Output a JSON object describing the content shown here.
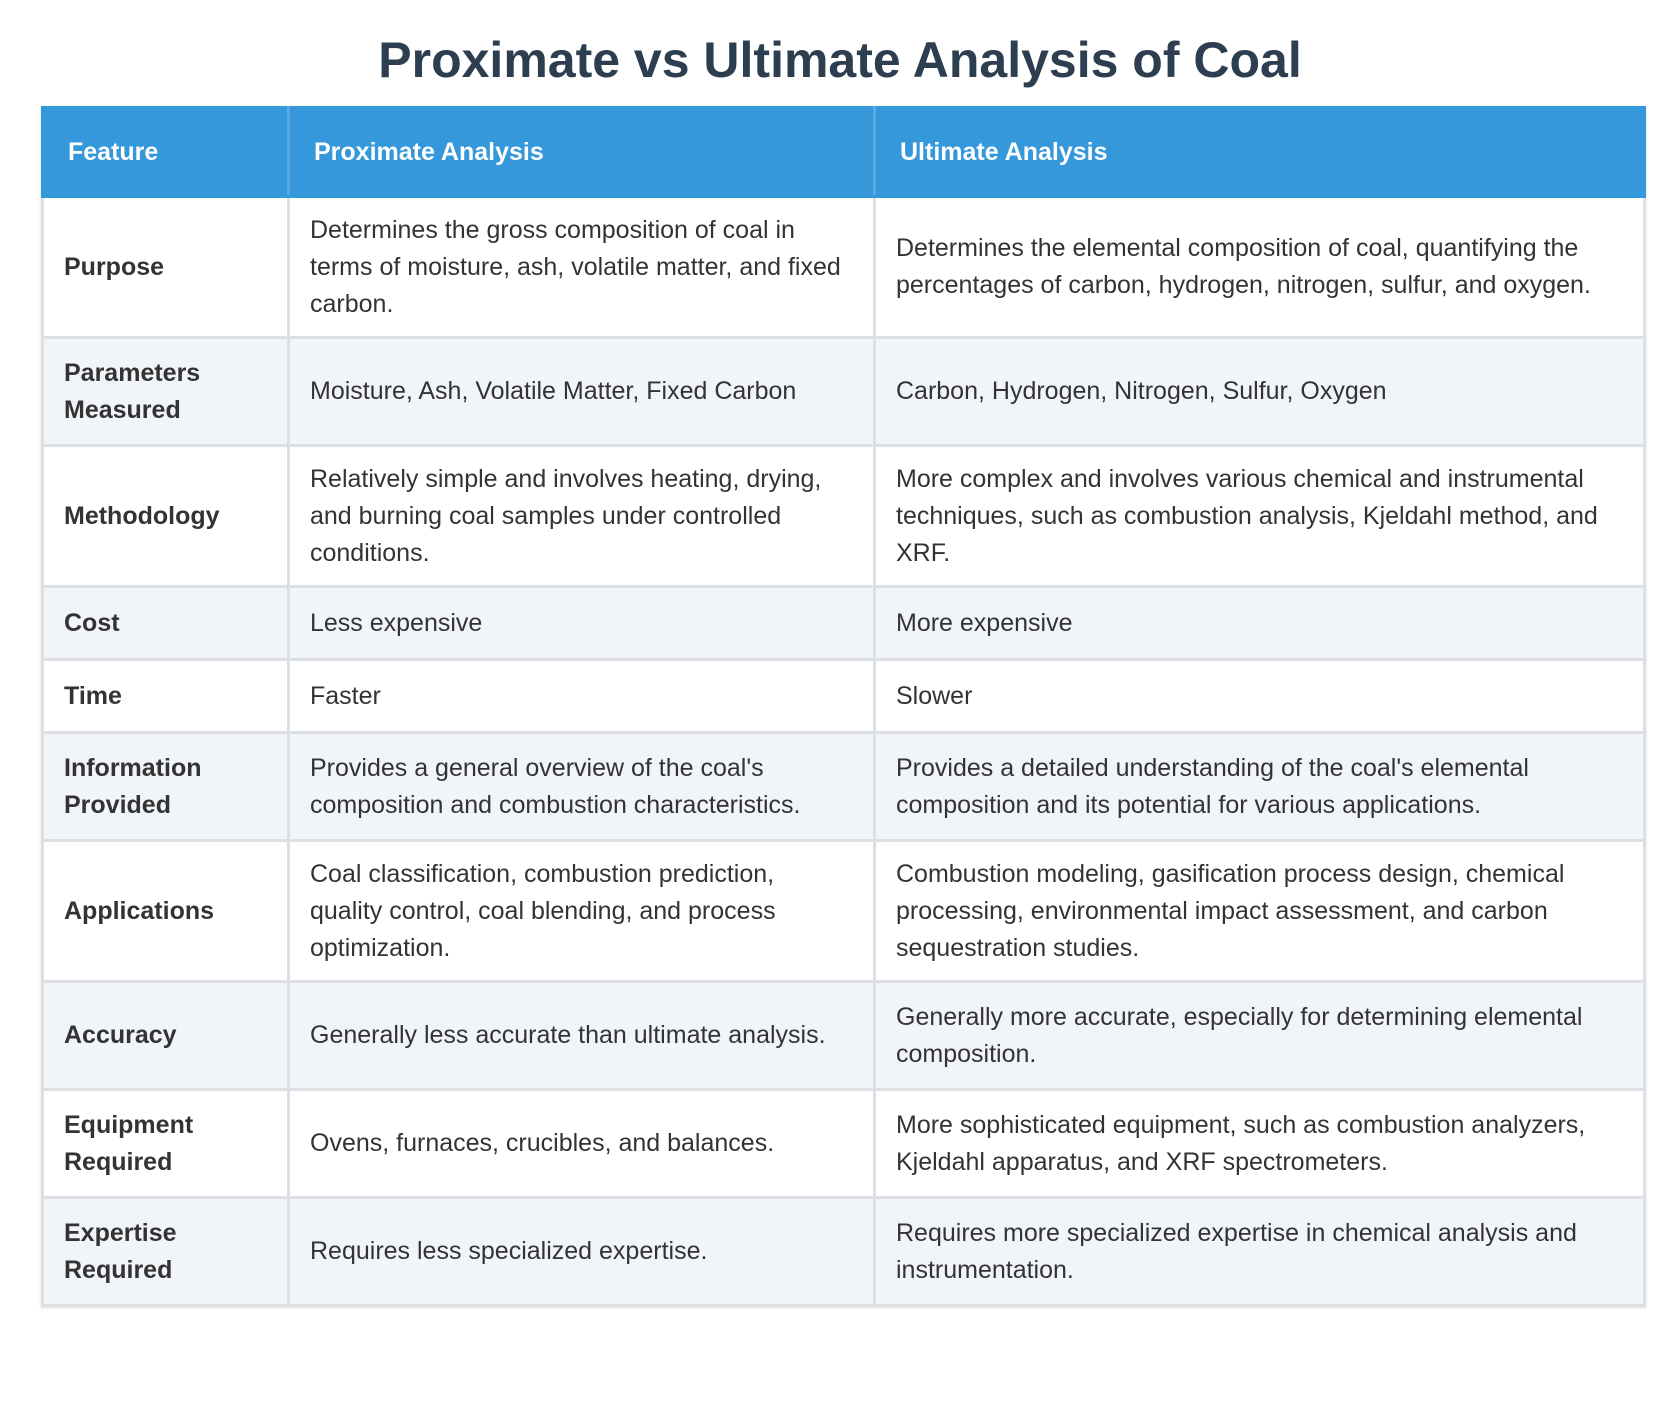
{
  "title": "Proximate vs Ultimate Analysis of Coal",
  "colors": {
    "header_bg": "#3498db",
    "title": "#2c3e50",
    "row_alt": "#f1f4f8"
  },
  "table": {
    "headers": [
      "Feature",
      "Proximate Analysis",
      "Ultimate Analysis"
    ],
    "rows": [
      {
        "feature": "Purpose",
        "proximate": "Determines the gross composition of coal in terms of moisture, ash, volatile matter, and fixed carbon.",
        "ultimate": "Determines the elemental composition of coal, quantifying the percentages of carbon, hydrogen, nitrogen, sulfur, and oxygen."
      },
      {
        "feature": "Parameters Measured",
        "proximate": "Moisture, Ash, Volatile Matter, Fixed Carbon",
        "ultimate": "Carbon, Hydrogen, Nitrogen, Sulfur, Oxygen"
      },
      {
        "feature": "Methodology",
        "proximate": "Relatively simple and involves heating, drying, and burning coal samples under controlled conditions.",
        "ultimate": "More complex and involves various chemical and instrumental techniques, such as combustion analysis, Kjeldahl method, and XRF."
      },
      {
        "feature": "Cost",
        "proximate": "Less expensive",
        "ultimate": "More expensive"
      },
      {
        "feature": "Time",
        "proximate": "Faster",
        "ultimate": "Slower"
      },
      {
        "feature": "Information Provided",
        "proximate": "Provides a general overview of the coal's composition and combustion characteristics.",
        "ultimate": "Provides a detailed understanding of the coal's elemental composition and its potential for various applications."
      },
      {
        "feature": "Applications",
        "proximate": "Coal classification, combustion prediction, quality control, coal blending, and process optimization.",
        "ultimate": "Combustion modeling, gasification process design, chemical processing, environmental impact assessment, and carbon sequestration studies."
      },
      {
        "feature": "Accuracy",
        "proximate": "Generally less accurate than ultimate analysis.",
        "ultimate": "Generally more accurate, especially for determining elemental composition."
      },
      {
        "feature": "Equipment Required",
        "proximate": "Ovens, furnaces, crucibles, and balances.",
        "ultimate": "More sophisticated equipment, such as combustion analyzers, Kjeldahl apparatus, and XRF spectrometers."
      },
      {
        "feature": "Expertise Required",
        "proximate": "Requires less specialized expertise.",
        "ultimate": "Requires more specialized expertise in chemical analysis and instrumentation."
      }
    ]
  }
}
